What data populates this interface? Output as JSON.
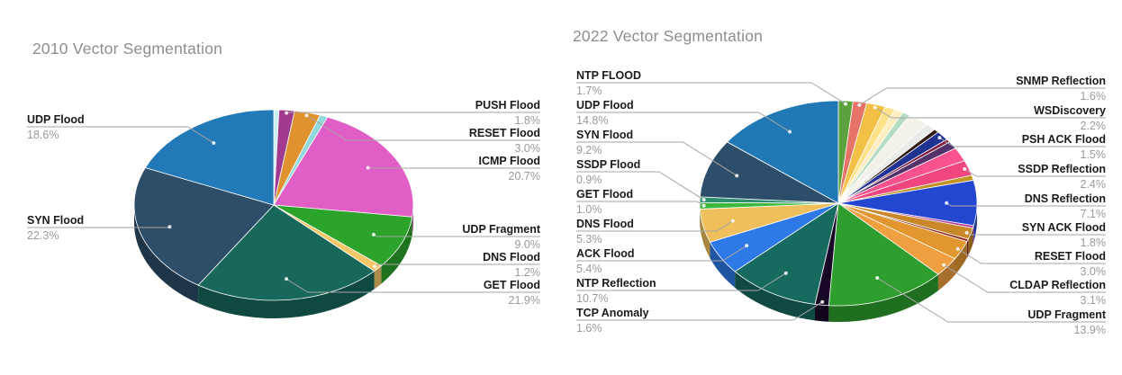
{
  "page": {
    "background": "#ffffff"
  },
  "chart_data": [
    {
      "type": "pie",
      "is_3d": true,
      "title": "2010 Vector Segmentation",
      "legend_position": "labeled-callouts",
      "slices": [
        {
          "label": "",
          "value": 0.6,
          "color": "#cdeef0",
          "labeled": false
        },
        {
          "label": "PUSH Flood",
          "value": 1.8,
          "color": "#a23a90",
          "labeled": true
        },
        {
          "label": "RESET Flood",
          "value": 3.0,
          "color": "#e0922f",
          "labeled": true
        },
        {
          "label": "",
          "value": 0.9,
          "color": "#8fd8dc",
          "labeled": false
        },
        {
          "label": "ICMP Flood",
          "value": 20.7,
          "color": "#e15ec6",
          "labeled": true
        },
        {
          "label": "UDP Fragment",
          "value": 9.0,
          "color": "#2ca42c",
          "labeled": true
        },
        {
          "label": "DNS Flood",
          "value": 1.2,
          "color": "#f3c766",
          "labeled": true
        },
        {
          "label": "GET Flood",
          "value": 21.9,
          "color": "#17685a",
          "labeled": true
        },
        {
          "label": "SYN Flood",
          "value": 22.3,
          "color": "#2d4d68",
          "labeled": true
        },
        {
          "label": "UDP Flood",
          "value": 18.6,
          "color": "#2179b8",
          "labeled": true
        }
      ],
      "callouts": {
        "left": [
          {
            "name": "UDP Flood",
            "pct": "18.6%"
          },
          {
            "name": "SYN Flood",
            "pct": "22.3%"
          }
        ],
        "right": [
          {
            "name": "PUSH Flood",
            "pct": "1.8%"
          },
          {
            "name": "RESET Flood",
            "pct": "3.0%"
          },
          {
            "name": "ICMP Flood",
            "pct": "20.7%"
          },
          {
            "name": "UDP Fragment",
            "pct": "9.0%"
          },
          {
            "name": "DNS Flood",
            "pct": "1.2%"
          },
          {
            "name": "GET Flood",
            "pct": "21.9%"
          }
        ]
      }
    },
    {
      "type": "pie",
      "is_3d": true,
      "title": "2022 Vector Segmentation",
      "legend_position": "labeled-callouts",
      "slices": [
        {
          "label": "NTP FLOOD",
          "value": 1.7,
          "color": "#5ba23c",
          "labeled": true
        },
        {
          "label": "SNMP Reflection",
          "value": 1.6,
          "color": "#e57368",
          "labeled": true
        },
        {
          "label": "WSDiscovery",
          "value": 2.2,
          "color": "#f2c044",
          "labeled": true
        },
        {
          "label": "",
          "value": 1.2,
          "color": "#fde28a",
          "labeled": false
        },
        {
          "label": "",
          "value": 1.0,
          "color": "#fcedc0",
          "labeled": false
        },
        {
          "label": "",
          "value": 0.9,
          "color": "#b5dcc3",
          "labeled": false
        },
        {
          "label": "",
          "value": 2.4,
          "color": "#f4f1e9",
          "labeled": false
        },
        {
          "label": "",
          "value": 1.2,
          "color": "#e9ece9",
          "labeled": false
        },
        {
          "label": "",
          "value": 0.6,
          "color": "#2e1a0e",
          "labeled": false
        },
        {
          "label": "PSH ACK Flood",
          "value": 1.5,
          "color": "#203393",
          "labeled": true
        },
        {
          "label": "",
          "value": 0.5,
          "color": "#7c1b3d",
          "labeled": false
        },
        {
          "label": "",
          "value": 1.2,
          "color": "#54336b",
          "labeled": false
        },
        {
          "label": "",
          "value": 2.2,
          "color": "#f9528f",
          "labeled": false
        },
        {
          "label": "SSDP Reflection",
          "value": 2.4,
          "color": "#f0457f",
          "labeled": true
        },
        {
          "label": "",
          "value": 0.8,
          "color": "#c29424",
          "labeled": false
        },
        {
          "label": "DNS Reflection",
          "value": 7.1,
          "color": "#2447d2",
          "labeled": true
        },
        {
          "label": "",
          "value": 0.4,
          "color": "#b43a97",
          "labeled": false
        },
        {
          "label": "SYN ACK Flood",
          "value": 1.8,
          "color": "#c8882a",
          "labeled": true
        },
        {
          "label": "",
          "value": 0.4,
          "color": "#8e2323",
          "labeled": false
        },
        {
          "label": "RESET Flood",
          "value": 3.0,
          "color": "#e1962f",
          "labeled": true
        },
        {
          "label": "CLDAP Reflection",
          "value": 3.1,
          "color": "#ef9f3f",
          "labeled": true
        },
        {
          "label": "UDP Fragment",
          "value": 13.9,
          "color": "#2e9e2e",
          "labeled": true
        },
        {
          "label": "TCP Anomaly",
          "value": 1.6,
          "color": "#180726",
          "labeled": true
        },
        {
          "label": "NTP Reflection",
          "value": 10.7,
          "color": "#176a5e",
          "labeled": true
        },
        {
          "label": "ACK Flood",
          "value": 5.4,
          "color": "#2e79e8",
          "labeled": true
        },
        {
          "label": "DNS Flood",
          "value": 5.3,
          "color": "#efbf5b",
          "labeled": true
        },
        {
          "label": "GET Flood",
          "value": 1.0,
          "color": "#3cb93c",
          "labeled": true
        },
        {
          "label": "SSDP Flood",
          "value": 0.9,
          "color": "#2f8f6e",
          "labeled": true
        },
        {
          "label": "SYN Flood",
          "value": 9.2,
          "color": "#2d4e6b",
          "labeled": true
        },
        {
          "label": "UDP Flood",
          "value": 14.8,
          "color": "#2078b4",
          "labeled": true
        }
      ],
      "callouts": {
        "left": [
          {
            "name": "NTP FLOOD",
            "pct": "1.7%"
          },
          {
            "name": "UDP Flood",
            "pct": "14.8%"
          },
          {
            "name": "SYN Flood",
            "pct": "9.2%"
          },
          {
            "name": "SSDP Flood",
            "pct": "0.9%"
          },
          {
            "name": "GET Flood",
            "pct": "1.0%"
          },
          {
            "name": "DNS Flood",
            "pct": "5.3%"
          },
          {
            "name": "ACK Flood",
            "pct": "5.4%"
          },
          {
            "name": "NTP Reflection",
            "pct": "10.7%"
          },
          {
            "name": "TCP Anomaly",
            "pct": "1.6%"
          }
        ],
        "right": [
          {
            "name": "SNMP Reflection",
            "pct": "1.6%"
          },
          {
            "name": "WSDiscovery",
            "pct": "2.2%"
          },
          {
            "name": "PSH ACK Flood",
            "pct": "1.5%"
          },
          {
            "name": "SSDP Reflection",
            "pct": "2.4%"
          },
          {
            "name": "DNS Reflection",
            "pct": "7.1%"
          },
          {
            "name": "SYN ACK Flood",
            "pct": "1.8%"
          },
          {
            "name": "RESET Flood",
            "pct": "3.0%"
          },
          {
            "name": "CLDAP Reflection",
            "pct": "3.1%"
          },
          {
            "name": "UDP Fragment",
            "pct": "13.9%"
          }
        ]
      }
    }
  ]
}
